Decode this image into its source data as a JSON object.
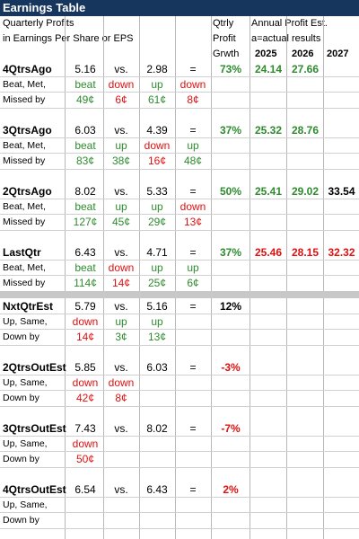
{
  "title": "Earnings Table",
  "header": {
    "desc1": "Quarterly Profits",
    "desc2": "in Earnings Per Share or EPS",
    "qtrly1": "Qtrly",
    "qtrly2": "Profit",
    "qtrly3": "Grwth",
    "annual1": "Annual Profit Est.",
    "annual2": "a=actual results",
    "years": [
      "2025",
      "2026",
      "2027"
    ]
  },
  "colors": {
    "up": "#2e8b2e",
    "down": "#e01010",
    "title_bg": "#17365d"
  },
  "rows": [
    {
      "label": "4QtrsAgo",
      "actual": "5.16",
      "vs": "vs.",
      "prior": "2.98",
      "eq": "=",
      "growth": "73%",
      "growth_color": "green",
      "annual": [
        {
          "v": "24.14",
          "c": "green"
        },
        {
          "v": "27.66",
          "c": "green"
        },
        {
          "v": "",
          "c": "black"
        }
      ],
      "sub1": "Beat, Met,",
      "sub2": "Missed by",
      "words": [
        {
          "v": "beat",
          "c": "green"
        },
        {
          "v": "down",
          "c": "red"
        },
        {
          "v": "up",
          "c": "green"
        },
        {
          "v": "down",
          "c": "red"
        }
      ],
      "cents": [
        {
          "v": "49¢",
          "c": "green"
        },
        {
          "v": "6¢",
          "c": "red"
        },
        {
          "v": "61¢",
          "c": "green"
        },
        {
          "v": "8¢",
          "c": "red"
        }
      ]
    },
    {
      "label": "3QtrsAgo",
      "actual": "6.03",
      "vs": "vs.",
      "prior": "4.39",
      "eq": "=",
      "growth": "37%",
      "growth_color": "green",
      "annual": [
        {
          "v": "25.32",
          "c": "green"
        },
        {
          "v": "28.76",
          "c": "green"
        },
        {
          "v": "",
          "c": "black"
        }
      ],
      "sub1": "Beat, Met,",
      "sub2": "Missed by",
      "words": [
        {
          "v": "beat",
          "c": "green"
        },
        {
          "v": "up",
          "c": "green"
        },
        {
          "v": "down",
          "c": "red"
        },
        {
          "v": "up",
          "c": "green"
        }
      ],
      "cents": [
        {
          "v": "83¢",
          "c": "green"
        },
        {
          "v": "38¢",
          "c": "green"
        },
        {
          "v": "16¢",
          "c": "red"
        },
        {
          "v": "48¢",
          "c": "green"
        }
      ]
    },
    {
      "label": "2QtrsAgo",
      "actual": "8.02",
      "vs": "vs.",
      "prior": "5.33",
      "eq": "=",
      "growth": "50%",
      "growth_color": "green",
      "annual": [
        {
          "v": "25.41",
          "c": "green"
        },
        {
          "v": "29.02",
          "c": "green"
        },
        {
          "v": "33.54",
          "c": "black"
        }
      ],
      "sub1": "Beat, Met,",
      "sub2": "Missed by",
      "words": [
        {
          "v": "beat",
          "c": "green"
        },
        {
          "v": "up",
          "c": "green"
        },
        {
          "v": "up",
          "c": "green"
        },
        {
          "v": "down",
          "c": "red"
        }
      ],
      "cents": [
        {
          "v": "127¢",
          "c": "green"
        },
        {
          "v": "45¢",
          "c": "green"
        },
        {
          "v": "29¢",
          "c": "green"
        },
        {
          "v": "13¢",
          "c": "red"
        }
      ]
    },
    {
      "label": "LastQtr",
      "actual": "6.43",
      "vs": "vs.",
      "prior": "4.71",
      "eq": "=",
      "growth": "37%",
      "growth_color": "green",
      "annual": [
        {
          "v": "25.46",
          "c": "red"
        },
        {
          "v": "28.15",
          "c": "red"
        },
        {
          "v": "32.32",
          "c": "red"
        }
      ],
      "sub1": "Beat, Met,",
      "sub2": "Missed by",
      "words": [
        {
          "v": "beat",
          "c": "green"
        },
        {
          "v": "down",
          "c": "red"
        },
        {
          "v": "up",
          "c": "green"
        },
        {
          "v": "up",
          "c": "green"
        }
      ],
      "cents": [
        {
          "v": "114¢",
          "c": "green"
        },
        {
          "v": "14¢",
          "c": "red"
        },
        {
          "v": "25¢",
          "c": "green"
        },
        {
          "v": "6¢",
          "c": "green"
        }
      ]
    }
  ],
  "est_rows": [
    {
      "label": "NxtQtrEst",
      "actual": "5.79",
      "vs": "vs.",
      "prior": "5.16",
      "eq": "=",
      "growth": "12%",
      "growth_color": "black",
      "sub1": "Up, Same,",
      "sub2": "Down by",
      "words": [
        {
          "v": "down",
          "c": "red"
        },
        {
          "v": "up",
          "c": "green"
        },
        {
          "v": "up",
          "c": "green"
        }
      ],
      "cents": [
        {
          "v": "14¢",
          "c": "red"
        },
        {
          "v": "3¢",
          "c": "green"
        },
        {
          "v": "13¢",
          "c": "green"
        }
      ]
    },
    {
      "label": "2QtrsOutEst",
      "actual": "5.85",
      "vs": "vs.",
      "prior": "6.03",
      "eq": "=",
      "growth": "-3%",
      "growth_color": "red",
      "sub1": "Up, Same,",
      "sub2": "Down by",
      "words": [
        {
          "v": "down",
          "c": "red"
        },
        {
          "v": "down",
          "c": "red"
        }
      ],
      "cents": [
        {
          "v": "42¢",
          "c": "red"
        },
        {
          "v": "8¢",
          "c": "red"
        }
      ]
    },
    {
      "label": "3QtrsOutEst",
      "actual": "7.43",
      "vs": "vs.",
      "prior": "8.02",
      "eq": "=",
      "growth": "-7%",
      "growth_color": "red",
      "sub1": "Up, Same,",
      "sub2": "Down by",
      "words": [
        {
          "v": "down",
          "c": "red"
        }
      ],
      "cents": [
        {
          "v": "50¢",
          "c": "red"
        }
      ]
    },
    {
      "label": "4QtrsOutEst",
      "actual": "6.54",
      "vs": "vs.",
      "prior": "6.43",
      "eq": "=",
      "growth": "2%",
      "growth_color": "red",
      "sub1": "Up, Same,",
      "sub2": "Down by",
      "words": [],
      "cents": []
    }
  ]
}
